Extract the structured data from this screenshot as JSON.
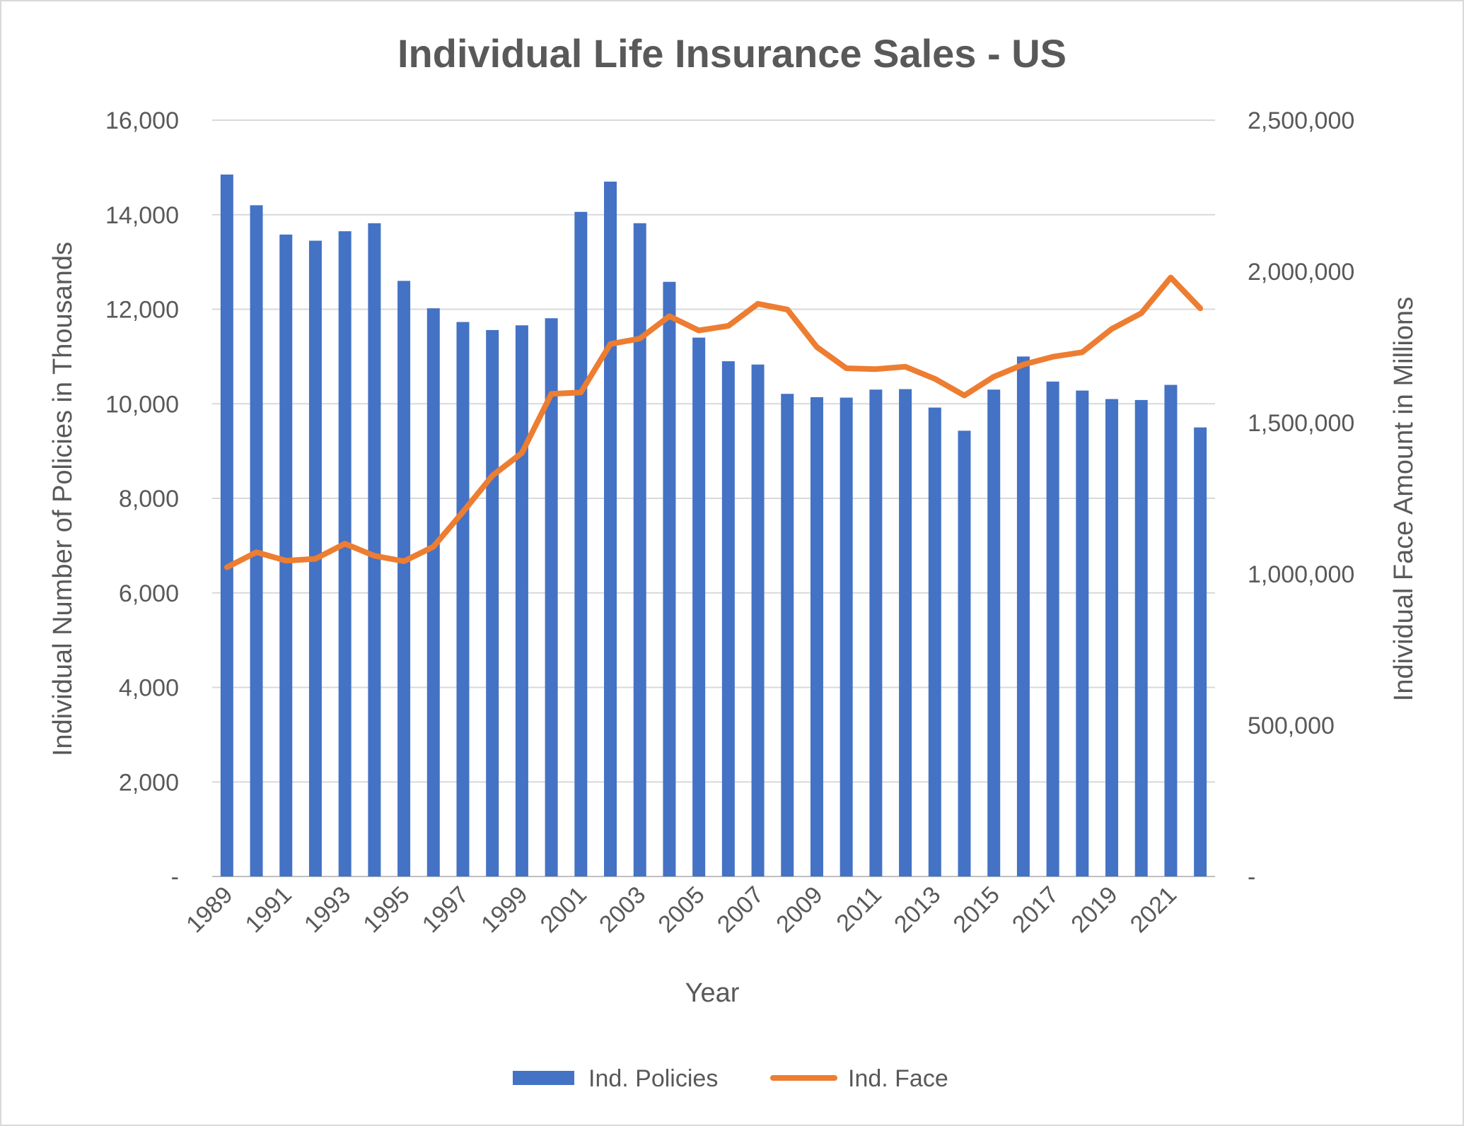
{
  "chart_data": {
    "type": "bar",
    "title": "Individual Life Insurance Sales - US",
    "xlabel": "Year",
    "ylabel": "Individual Number of Policies in Thousands",
    "y2label": "Individual Face Amount in Millions",
    "x": [
      1989,
      1990,
      1991,
      1992,
      1993,
      1994,
      1995,
      1996,
      1997,
      1998,
      1999,
      2000,
      2001,
      2002,
      2003,
      2004,
      2005,
      2006,
      2007,
      2008,
      2009,
      2010,
      2011,
      2012,
      2013,
      2014,
      2015,
      2016,
      2017,
      2018,
      2019,
      2020,
      2021,
      2022
    ],
    "x_tick_labels": [
      "1989",
      "1991",
      "1993",
      "1995",
      "1997",
      "1999",
      "2001",
      "2003",
      "2005",
      "2007",
      "2009",
      "2011",
      "2013",
      "2015",
      "2017",
      "2019",
      "2021"
    ],
    "ylim": [
      0,
      16000
    ],
    "y_ticks": [
      "-",
      "2,000",
      "4,000",
      "6,000",
      "8,000",
      "10,000",
      "12,000",
      "14,000",
      "16,000"
    ],
    "y2lim": [
      0,
      2500000
    ],
    "y2_ticks": [
      "-",
      "500,000",
      "1,000,000",
      "1,500,000",
      "2,000,000",
      "2,500,000"
    ],
    "grid": true,
    "legend_position": "bottom",
    "series": [
      {
        "name": "Ind. Policies",
        "type": "bar",
        "axis": "left",
        "color": "#4472c4",
        "values": [
          14850,
          14200,
          13580,
          13450,
          13650,
          13820,
          12600,
          12020,
          11730,
          11560,
          11660,
          11810,
          14060,
          14700,
          13820,
          12580,
          11400,
          10900,
          10830,
          10210,
          10140,
          10130,
          10300,
          10310,
          9920,
          9430,
          10300,
          11000,
          10470,
          10280,
          10100,
          10080,
          10400,
          9500
        ]
      },
      {
        "name": "Ind. Face",
        "type": "line",
        "axis": "right",
        "color": "#ed7d31",
        "values": [
          1022000,
          1072000,
          1044000,
          1050000,
          1100000,
          1060000,
          1042000,
          1090000,
          1205000,
          1325000,
          1400000,
          1595000,
          1600000,
          1760000,
          1778000,
          1852000,
          1805000,
          1820000,
          1893000,
          1874000,
          1750000,
          1680000,
          1677000,
          1685000,
          1645000,
          1590000,
          1652000,
          1692000,
          1718000,
          1733000,
          1810000,
          1862000,
          1980000,
          1878000
        ]
      }
    ]
  }
}
